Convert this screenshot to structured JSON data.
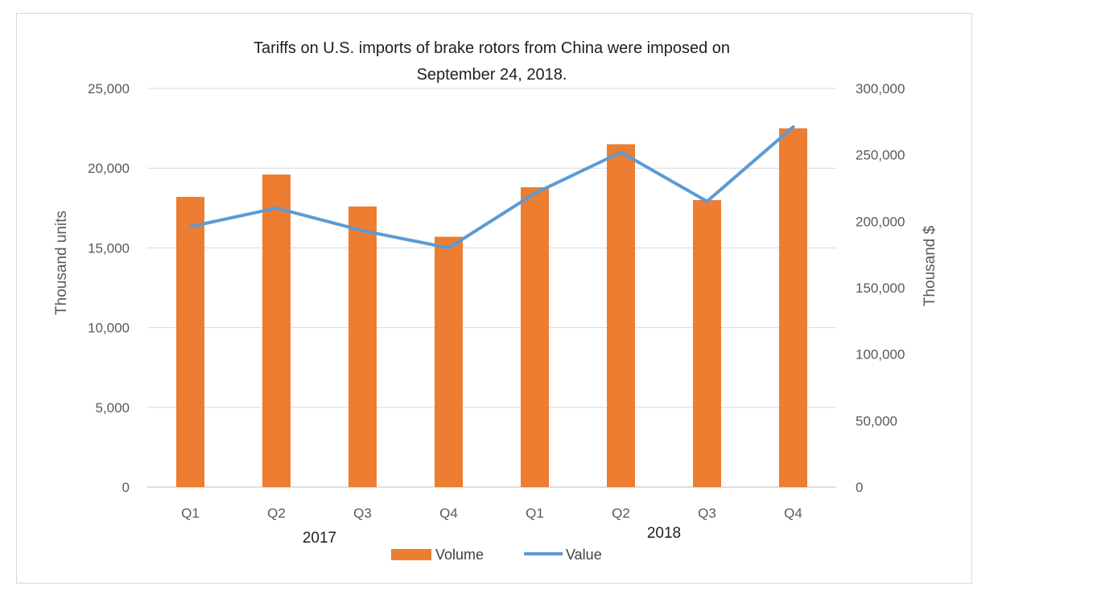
{
  "chart_data": {
    "type": "bar+line",
    "title_line1": "Tariffs on U.S. imports of brake rotors from China were imposed on",
    "title_line2": "September 24, 2018.",
    "categories": [
      "Q1",
      "Q2",
      "Q3",
      "Q4",
      "Q1",
      "Q2",
      "Q3",
      "Q4"
    ],
    "groups": [
      {
        "label": "2017",
        "span": [
          0,
          3
        ]
      },
      {
        "label": "2018",
        "span": [
          4,
          7
        ]
      }
    ],
    "ylabel_left": "Thousand units",
    "ylabel_right": "Thousand $",
    "ylim_left": [
      0,
      25000
    ],
    "ylim_right": [
      0,
      300000
    ],
    "yticks_left": [
      "0",
      "5,000",
      "10,000",
      "15,000",
      "20,000",
      "25,000"
    ],
    "yticks_right": [
      "0",
      "50,000",
      "100,000",
      "150,000",
      "200,000",
      "250,000",
      "300,000"
    ],
    "grid": true,
    "legend_position": "bottom",
    "series": [
      {
        "name": "Volume",
        "type": "bar",
        "axis": "left",
        "color": "#ED7D31",
        "values": [
          18200,
          19600,
          17600,
          15700,
          18800,
          21500,
          18000,
          22500
        ]
      },
      {
        "name": "Value",
        "type": "line",
        "axis": "right",
        "color": "#5B9BD5",
        "values": [
          196000,
          210000,
          193000,
          180000,
          221000,
          252000,
          215000,
          271000
        ]
      }
    ]
  }
}
